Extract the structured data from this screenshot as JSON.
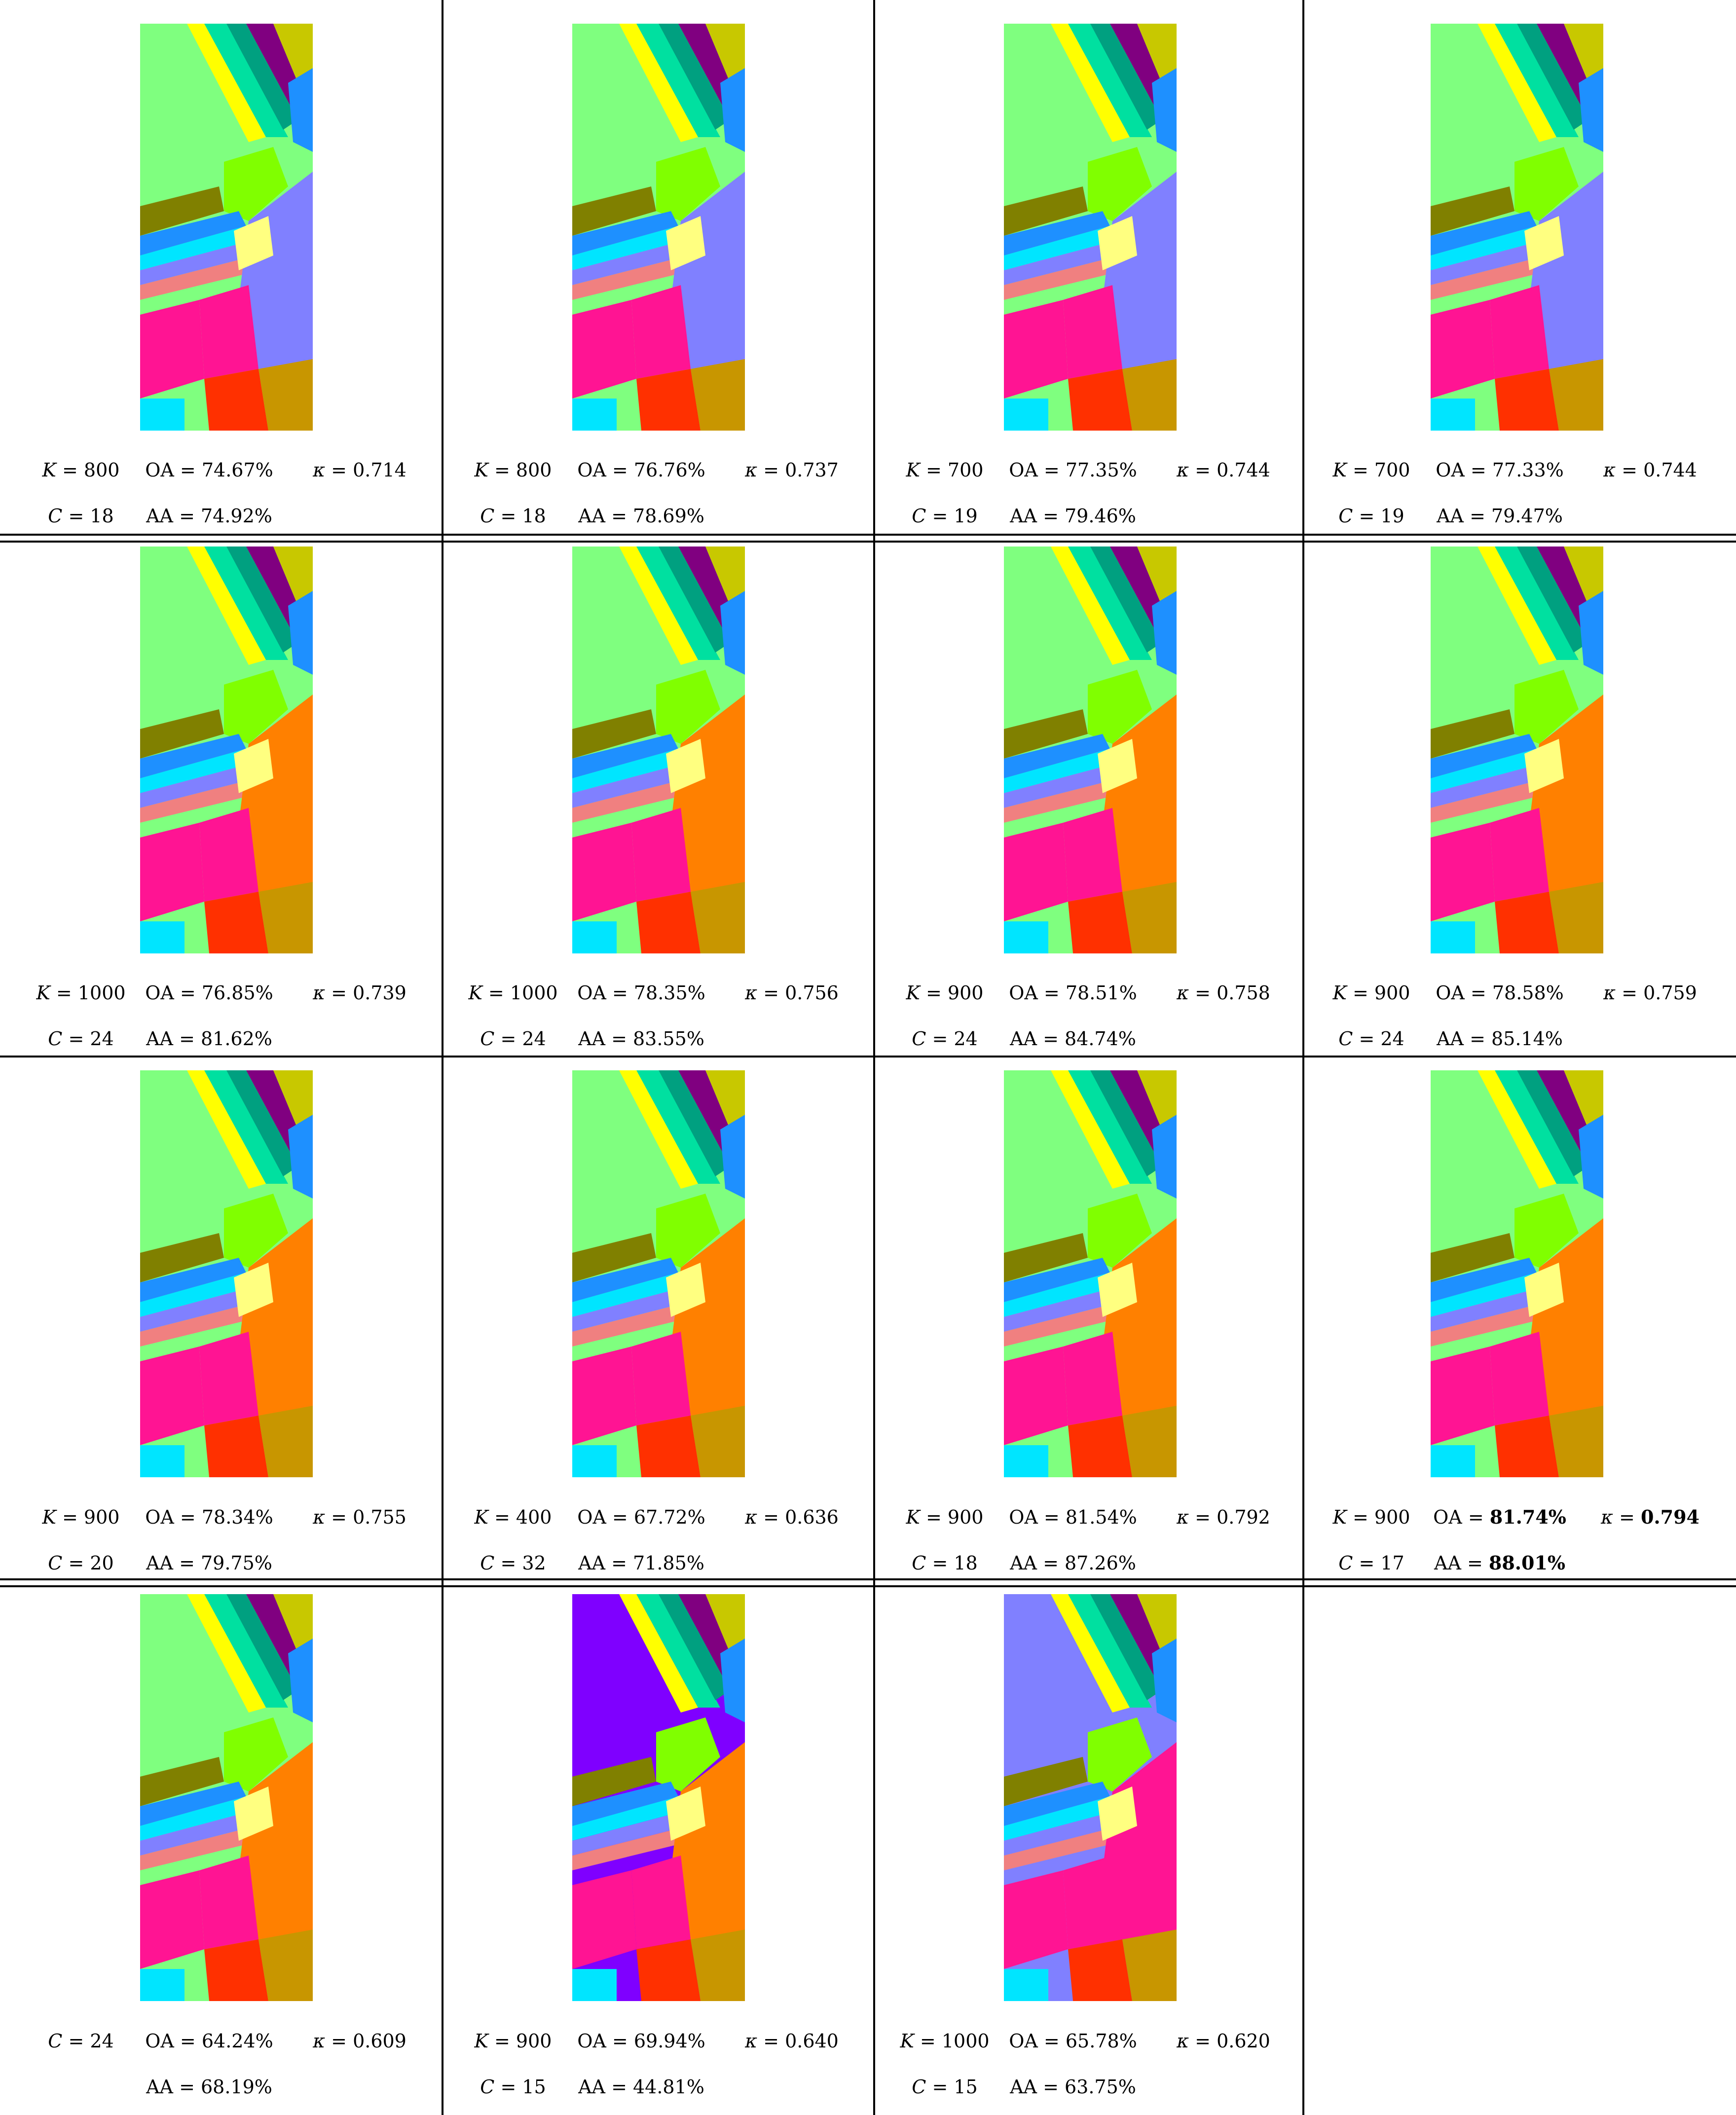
{
  "figure": {
    "rows": [
      {
        "panels": [
          {
            "K": "800",
            "C": "18",
            "OA": "74.67%",
            "AA": "74.92%",
            "kappa": "0.714"
          },
          {
            "K": "800",
            "C": "18",
            "OA": "76.76%",
            "AA": "78.69%",
            "kappa": "0.737"
          },
          {
            "K": "700",
            "C": "19",
            "OA": "77.35%",
            "AA": "79.46%",
            "kappa": "0.744"
          },
          {
            "K": "700",
            "C": "19",
            "OA": "77.33%",
            "AA": "79.47%",
            "kappa": "0.744"
          }
        ]
      },
      {
        "panels": [
          {
            "K": "1000",
            "C": "24",
            "OA": "76.85%",
            "AA": "81.62%",
            "kappa": "0.739"
          },
          {
            "K": "1000",
            "C": "24",
            "OA": "78.35%",
            "AA": "83.55%",
            "kappa": "0.756"
          },
          {
            "K": "900",
            "C": "24",
            "OA": "78.51%",
            "AA": "84.74%",
            "kappa": "0.758"
          },
          {
            "K": "900",
            "C": "24",
            "OA": "78.58%",
            "AA": "85.14%",
            "kappa": "0.759"
          }
        ]
      },
      {
        "panels": [
          {
            "K": "900",
            "C": "20",
            "OA": "78.34%",
            "AA": "79.75%",
            "kappa": "0.755"
          },
          {
            "K": "400",
            "C": "32",
            "OA": "67.72%",
            "AA": "71.85%",
            "kappa": "0.636"
          },
          {
            "K": "900",
            "C": "18",
            "OA": "81.54%",
            "AA": "87.26%",
            "kappa": "0.792"
          },
          {
            "K": "900",
            "C": "17",
            "OA": "81.74%",
            "AA": "88.01%",
            "kappa": "0.794",
            "best": true
          }
        ]
      },
      {
        "panels": [
          {
            "C": "24",
            "OA": "64.24%",
            "AA": "68.19%",
            "kappa": "0.609"
          },
          {
            "K": "900",
            "C": "15",
            "OA": "69.94%",
            "AA": "44.81%",
            "kappa": "0.640"
          },
          {
            "K": "1000",
            "C": "15",
            "OA": "65.78%",
            "AA": "63.75%",
            "kappa": "0.620"
          }
        ]
      }
    ]
  },
  "palette": {
    "green": "#7fff7f",
    "teal": "#00a080",
    "aqua": "#00e0a0",
    "purple": "#800080",
    "olive": "#c8c800",
    "yellow": "#ffff00",
    "blue": "#1e90ff",
    "cyan": "#00e5ff",
    "lime": "#80ff00",
    "dark_olive": "#808000",
    "pink": "#ff1493",
    "salmon": "#f08080",
    "periwinkle": "#8080ff",
    "orange": "#ff8000",
    "tan": "#c89600",
    "light_yellow": "#ffff80",
    "red": "#ff3000",
    "violet": "#7f00ff",
    "dark_teal": "#007878"
  }
}
